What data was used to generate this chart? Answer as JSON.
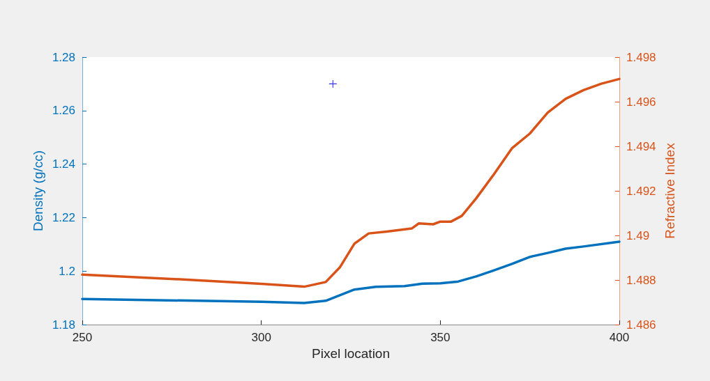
{
  "chart_data": {
    "type": "line",
    "xlabel": "Pixel location",
    "ylabel": "Density (g/cc)",
    "y2label": "Refractive Index",
    "xlim": [
      250,
      400
    ],
    "xticks": [
      250,
      300,
      350,
      400
    ],
    "ylim": [
      1.18,
      1.28
    ],
    "yticks": [
      1.18,
      1.2,
      1.22,
      1.24,
      1.26,
      1.28
    ],
    "y2lim": [
      1.486,
      1.498
    ],
    "y2ticks": [
      1.486,
      1.488,
      1.49,
      1.492,
      1.494,
      1.496,
      1.498
    ],
    "grid": false,
    "marker": "none",
    "line_style": "solid",
    "series": [
      {
        "color": "#0072bd",
        "x": [
          250,
          300,
          312,
          318,
          326,
          332,
          340,
          345,
          350,
          355,
          360,
          365,
          370,
          375,
          380,
          385,
          390,
          400
        ],
        "values": [
          1.1896,
          1.1885,
          1.1881,
          1.1889,
          1.1931,
          1.1941,
          1.1944,
          1.1953,
          1.1954,
          1.1961,
          1.198,
          1.2003,
          1.2027,
          1.2053,
          1.2068,
          1.2084,
          1.2092,
          1.211
        ]
      },
      {
        "color": "#d95319",
        "axis": "y2",
        "x": [
          250,
          280,
          300,
          312,
          318,
          322,
          326,
          330,
          335,
          342,
          344,
          348,
          350,
          353,
          356,
          360,
          365,
          370,
          375,
          380,
          385,
          390,
          395,
          400
        ],
        "values": [
          1.48824,
          1.48801,
          1.48783,
          1.4877,
          1.48791,
          1.48858,
          1.48963,
          1.49009,
          1.49017,
          1.49031,
          1.49054,
          1.4905,
          1.49062,
          1.49062,
          1.49088,
          1.49166,
          1.49275,
          1.49391,
          1.49457,
          1.49551,
          1.49613,
          1.49652,
          1.49681,
          1.49702
        ]
      },
      {
        "type": "scatter",
        "marker": "cross",
        "color": "#0000ff",
        "x": [
          320
        ],
        "values": [
          1.27
        ]
      }
    ]
  }
}
